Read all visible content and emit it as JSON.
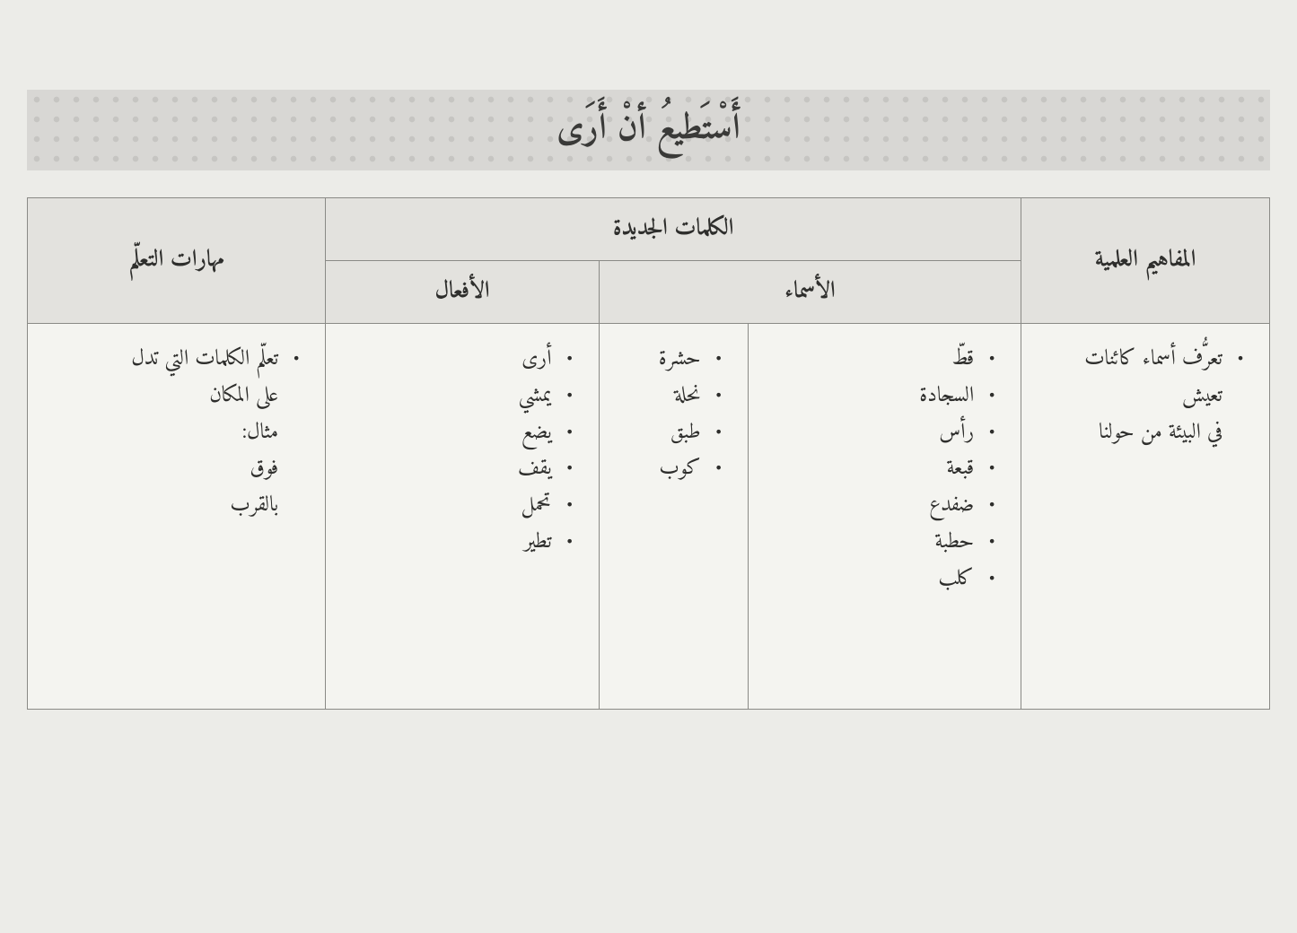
{
  "title": "أَسْتَطيعُ أنْ أَرَى",
  "headers": {
    "concepts": "المفاهيم العلمية",
    "new_words": "الكلمات الجديدة",
    "nouns": "الأسماء",
    "verbs": "الأفعال",
    "skills": "مهارات التعلّم"
  },
  "concepts": {
    "line1": "تعرُّف أسماء كائنات تعيش",
    "line2": "في البيئة من حولنا"
  },
  "nouns_col1": [
    "قطّ",
    "السجادة",
    "رأس",
    "قبعة",
    "ضفدع",
    "حطبة",
    "كلب"
  ],
  "nouns_col2": [
    "حشرة",
    "نحلة",
    "طبق",
    "كوب"
  ],
  "verbs": [
    "أرى",
    "يمشي",
    "يضع",
    "يقف",
    "تحمل",
    "تطير"
  ],
  "skills": {
    "lead": "تعلّم الكلمات التي تدل",
    "sub": [
      "على المكان",
      "مثال:",
      "فوق",
      "بالقرب"
    ]
  },
  "colors": {
    "page_bg": "#ecece8",
    "banner_bg": "#d8d7d4",
    "banner_dot": "#c6c5c2",
    "header_bg": "#e3e2de",
    "cell_bg": "#f4f4f0",
    "border": "#8a8a86",
    "text": "#2e2e2c"
  },
  "layout": {
    "col_widths_pct": [
      20,
      22,
      12,
      22,
      24
    ],
    "title_fontsize": 40,
    "header_fontsize": 26,
    "body_fontsize": 24
  }
}
